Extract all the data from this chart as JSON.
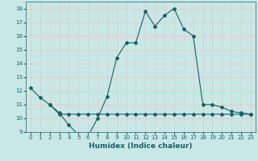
{
  "xlabel": "Humidex (Indice chaleur)",
  "bg_color": "#c8e8e8",
  "plot_bg_color": "#c8e8e8",
  "line_color": "#1a6060",
  "grid_color": "#e8c8c8",
  "x_upper": [
    0,
    1,
    2,
    3,
    4,
    5,
    6,
    7,
    8,
    9,
    10,
    11,
    12,
    13,
    14,
    15,
    16,
    17,
    18,
    19,
    20,
    21,
    22,
    23
  ],
  "y_upper": [
    12.2,
    11.5,
    11.0,
    10.4,
    9.5,
    8.8,
    8.7,
    10.0,
    11.6,
    14.4,
    15.5,
    15.5,
    17.8,
    16.7,
    17.5,
    18.0,
    16.5,
    16.0,
    11.0,
    11.0,
    10.8,
    10.5,
    10.4,
    10.3
  ],
  "x_lower": [
    2,
    3,
    4,
    5,
    6,
    7,
    8,
    9,
    10,
    11,
    12,
    13,
    14,
    15,
    16,
    17,
    18,
    19,
    20,
    21,
    22,
    23
  ],
  "y_lower": [
    11.0,
    10.3,
    10.3,
    10.3,
    10.3,
    10.3,
    10.3,
    10.3,
    10.3,
    10.3,
    10.3,
    10.3,
    10.3,
    10.3,
    10.3,
    10.3,
    10.3,
    10.3,
    10.3,
    10.3,
    10.3,
    10.3
  ],
  "ylim": [
    9,
    18.5
  ],
  "xlim": [
    -0.5,
    23.5
  ],
  "yticks": [
    9,
    10,
    11,
    12,
    13,
    14,
    15,
    16,
    17,
    18
  ],
  "xticks": [
    0,
    1,
    2,
    3,
    4,
    5,
    6,
    7,
    8,
    9,
    10,
    11,
    12,
    13,
    14,
    15,
    16,
    17,
    18,
    19,
    20,
    21,
    22,
    23
  ],
  "xlabel_fontsize": 6.5,
  "tick_fontsize": 5.0,
  "marker_size": 2.0,
  "line_width": 0.8
}
